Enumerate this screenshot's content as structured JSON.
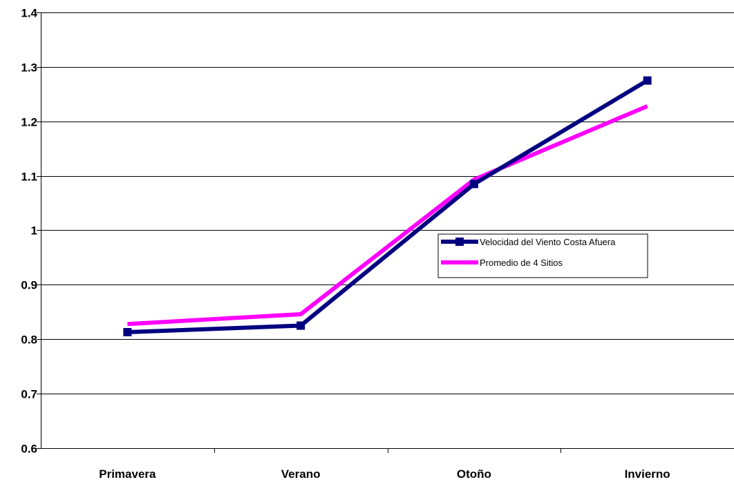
{
  "chart_data": {
    "type": "line",
    "categories": [
      "Primavera",
      "Verano",
      "Otoño",
      "Invierno"
    ],
    "series": [
      {
        "name": "Velocidad del Viento Costa Afuera",
        "values": [
          0.813,
          0.825,
          1.085,
          1.275
        ],
        "color": "#000080",
        "marker": "square"
      },
      {
        "name": "Promedio de 4 Sitios",
        "values": [
          0.828,
          0.846,
          1.093,
          1.228
        ],
        "color": "#ff00ff",
        "marker": "none"
      }
    ],
    "yticks": [
      "0.6",
      "0.7",
      "0.8",
      "0.9",
      "1",
      "1.1",
      "1.2",
      "1.3",
      "1.4"
    ],
    "ylim": [
      0.6,
      1.4
    ],
    "grid": true,
    "legend_position": "center-right",
    "title": "",
    "xlabel": "",
    "ylabel": ""
  }
}
